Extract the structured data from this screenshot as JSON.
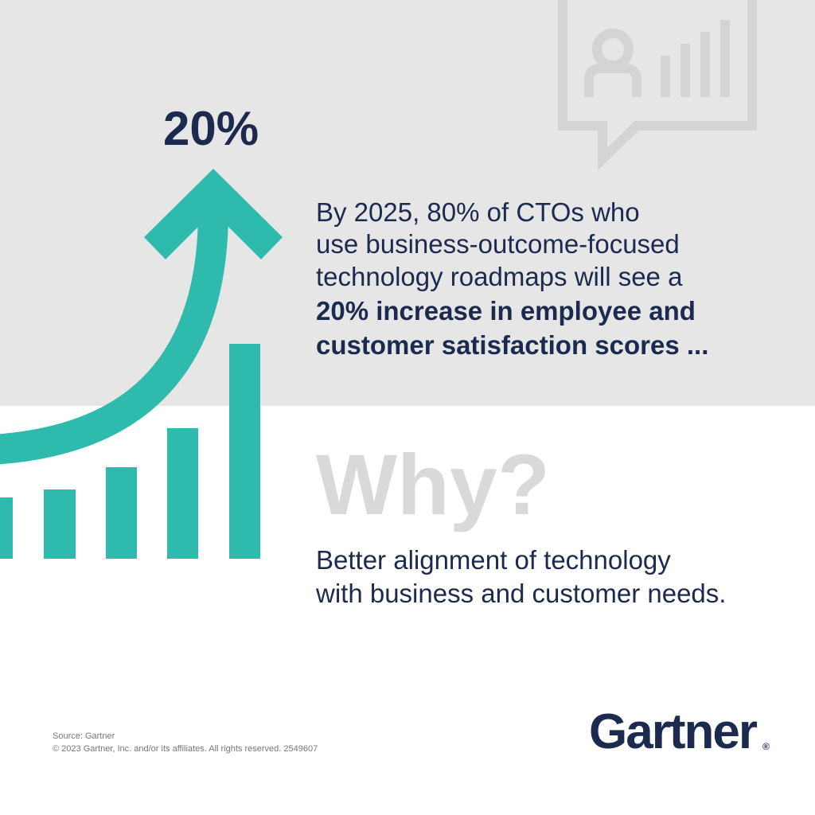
{
  "headline": "20%",
  "statement": {
    "text_lines": [
      "By 2025, 80% of CTOs who",
      "use business-outcome-focused",
      "technology roadmaps will see a"
    ],
    "bold_lines": [
      "20% increase in employee and",
      "customer satisfaction scores ..."
    ]
  },
  "why": {
    "heading": "Why?",
    "lines": [
      "Better alignment of technology",
      "with business and customer needs."
    ]
  },
  "footer": {
    "source": "Source: Gartner",
    "copyright": "© 2023 Gartner, Inc. and/or its affiliates. All rights reserved. 2549607"
  },
  "logo": {
    "text": "Gartner",
    "mark": "®"
  }
}
